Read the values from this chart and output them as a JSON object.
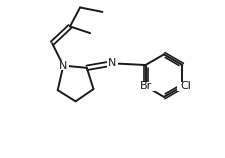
{
  "bg_color": "#ffffff",
  "line_color": "#1a1a1a",
  "line_width": 1.4,
  "font_size_label": 8.0,
  "xlim": [
    0,
    10
  ],
  "ylim": [
    0,
    7
  ]
}
